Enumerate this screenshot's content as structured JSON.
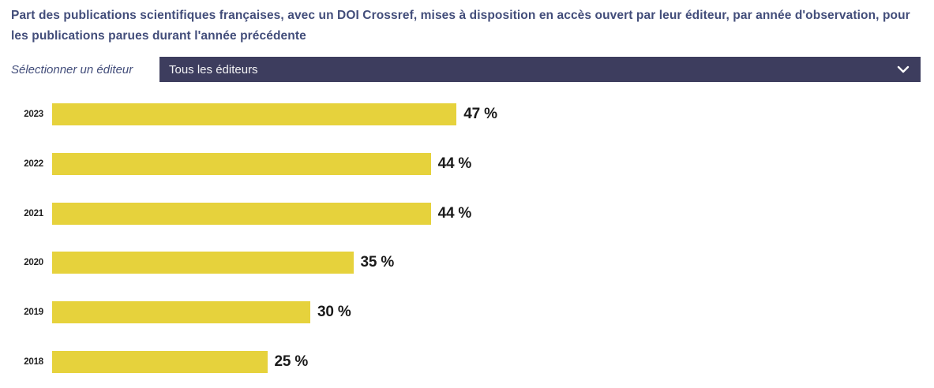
{
  "title": {
    "text": "Part des publications scientifiques françaises, avec un DOI Crossref, mises à disposition en accès ouvert par leur éditeur, par année d'observation, pour les publications parues durant l'année précédente"
  },
  "filter": {
    "label": "Sélectionner un éditeur",
    "selected": "Tous les éditeurs",
    "chevron_icon": "chevron-down"
  },
  "colors": {
    "title_text": "#424d7a",
    "dropdown_bg": "#3d3d5e",
    "dropdown_text": "#f4f4f6",
    "bar": "#e6d23c",
    "axis_label": "#1f1f1f",
    "background": "#ffffff"
  },
  "chart_data": {
    "type": "bar",
    "orientation": "horizontal",
    "title": "Part des publications scientifiques françaises, avec un DOI Crossref, mises à disposition en accès ouvert par leur éditeur, par année d'observation, pour les publications parues durant l'année précédente",
    "categories": [
      "2023",
      "2022",
      "2021",
      "2020",
      "2019",
      "2018"
    ],
    "values": [
      47,
      44,
      44,
      35,
      30,
      25
    ],
    "value_labels": [
      "47 %",
      "44 %",
      "44 %",
      "35 %",
      "30 %",
      "25 %"
    ],
    "unit": "%",
    "xlabel": "",
    "ylabel": "",
    "xlim": [
      0,
      100
    ],
    "grid": false,
    "legend": false,
    "bar_color": "#e6d23c"
  }
}
